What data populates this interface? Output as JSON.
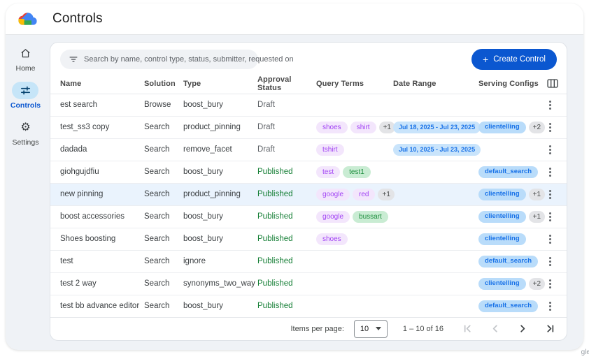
{
  "header": {
    "title": "Controls"
  },
  "page": {
    "watermark": "gle"
  },
  "sidebar": {
    "items": [
      {
        "label": "Home"
      },
      {
        "label": "Controls"
      },
      {
        "label": "Settings"
      }
    ]
  },
  "toolbar": {
    "search_placeholder": "Search by name, control type, status, submitter, requested on",
    "create_label": "Create Control",
    "plus": "+"
  },
  "table": {
    "columns": [
      "Name",
      "Solution",
      "Type",
      "Approval Status",
      "Query Terms",
      "Date Range",
      "Serving Configs"
    ],
    "rows": [
      {
        "name": "est search",
        "solution": "Browse",
        "type": "boost_bury",
        "status": "Draft",
        "query_terms": [],
        "query_extra": "",
        "date_range": "",
        "serving": "",
        "serving_extra": "",
        "highlight": false
      },
      {
        "name": "test_ss3 copy",
        "solution": "Search",
        "type": "product_pinning",
        "status": "Draft",
        "query_terms": [
          {
            "text": "shoes",
            "color": "purple"
          },
          {
            "text": "shirt",
            "color": "purple"
          }
        ],
        "query_extra": "+1",
        "date_range": "Jul 18, 2025 - Jul 23, 2025",
        "serving": "clientelling",
        "serving_extra": "+2",
        "highlight": false
      },
      {
        "name": "dadada",
        "solution": "Search",
        "type": "remove_facet",
        "status": "Draft",
        "query_terms": [
          {
            "text": "tshirt",
            "color": "purple"
          }
        ],
        "query_extra": "",
        "date_range": "Jul 10, 2025 - Jul 23, 2025",
        "serving": "",
        "serving_extra": "",
        "highlight": false
      },
      {
        "name": "giohgujdfiu",
        "solution": "Search",
        "type": "boost_bury",
        "status": "Published",
        "query_terms": [
          {
            "text": "test",
            "color": "purple"
          },
          {
            "text": "test1",
            "color": "green"
          }
        ],
        "query_extra": "",
        "date_range": "",
        "serving": "default_search",
        "serving_extra": "",
        "highlight": false
      },
      {
        "name": "new pinning",
        "solution": "Search",
        "type": "product_pinning",
        "status": "Published",
        "query_terms": [
          {
            "text": "google",
            "color": "purple"
          },
          {
            "text": "red",
            "color": "purple"
          }
        ],
        "query_extra": "+1",
        "date_range": "",
        "serving": "clientelling",
        "serving_extra": "+1",
        "highlight": true
      },
      {
        "name": "boost accessories",
        "solution": "Search",
        "type": "boost_bury",
        "status": "Published",
        "query_terms": [
          {
            "text": "google",
            "color": "purple"
          },
          {
            "text": "bussart",
            "color": "green"
          }
        ],
        "query_extra": "",
        "date_range": "",
        "serving": "clientelling",
        "serving_extra": "+1",
        "highlight": false
      },
      {
        "name": "Shoes boosting",
        "solution": "Search",
        "type": "boost_bury",
        "status": "Published",
        "query_terms": [
          {
            "text": "shoes",
            "color": "purple"
          }
        ],
        "query_extra": "",
        "date_range": "",
        "serving": "clientelling",
        "serving_extra": "",
        "highlight": false
      },
      {
        "name": "test",
        "solution": "Search",
        "type": "ignore",
        "status": "Published",
        "query_terms": [],
        "query_extra": "",
        "date_range": "",
        "serving": "default_search",
        "serving_extra": "",
        "highlight": false
      },
      {
        "name": "test 2 way",
        "solution": "Search",
        "type": "synonyms_two_way",
        "status": "Published",
        "query_terms": [],
        "query_extra": "",
        "date_range": "",
        "serving": "clientelling",
        "serving_extra": "+2",
        "highlight": false
      },
      {
        "name": "test bb advance editor",
        "solution": "Search",
        "type": "boost_bury",
        "status": "Published",
        "query_terms": [],
        "query_extra": "",
        "date_range": "",
        "serving": "default_search",
        "serving_extra": "",
        "highlight": false
      }
    ]
  },
  "pagination": {
    "items_per_page_label": "Items per page:",
    "items_per_page": "10",
    "range": "1 – 10 of 16"
  }
}
